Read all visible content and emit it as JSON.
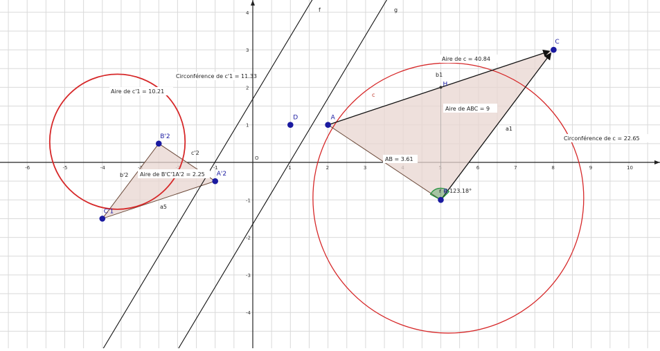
{
  "axes": {
    "x_ticks": [
      "-6",
      "-5",
      "-4",
      "-3",
      "-2",
      "-1",
      "1",
      "2",
      "3",
      "4",
      "5",
      "6",
      "7",
      "8",
      "9",
      "10"
    ],
    "y_ticks": [
      "4",
      "3",
      "2",
      "1",
      "-1",
      "-2",
      "-3",
      "-4"
    ],
    "origin": "O",
    "xrange": [
      -6.7,
      10.8
    ],
    "yrange": [
      -4.6,
      4.4
    ]
  },
  "points": {
    "A": {
      "label": "A",
      "x": 2,
      "y": 1
    },
    "B": {
      "label": "B",
      "x": 5,
      "y": -1
    },
    "C": {
      "label": "C",
      "x": 8,
      "y": 3
    },
    "D": {
      "label": "D",
      "x": 1,
      "y": 1
    },
    "B2": {
      "label": "B'2",
      "x": -2.5,
      "y": 0.5
    },
    "A2": {
      "label": "A'2",
      "x": -1,
      "y": -0.5
    },
    "C1": {
      "label": "C'1",
      "x": -4,
      "y": -1.5
    },
    "H": {
      "label": "H",
      "x": 5,
      "y": 2
    }
  },
  "lines": {
    "f": {
      "label": "f",
      "x1": -4,
      "y1": -5,
      "x2": 2.1,
      "y2": 5.2
    },
    "g": {
      "label": "g",
      "x1": -2,
      "y1": -5,
      "x2": 4.2,
      "y2": 5.4
    }
  },
  "segment_labels": {
    "c": "c",
    "b1": "b1",
    "a1": "a1",
    "c2": "c'2",
    "b2": "b'2",
    "a5": "a5",
    "angle": "r = 123.18°"
  },
  "texts": {
    "aire_c": "Aire de c = 40.84",
    "aire_abc": "Aire de  ABC = 9",
    "ab": "AB = 3.61",
    "circ_c": "Circonférence de c = 22.65",
    "circ_c1": "Circonférence de c'1 = 11.33",
    "aire_c1": "Aire de c'1 = 10.21",
    "aire_tri2": "Aire de  B'C'1A'2 = 2.25"
  },
  "colors": {
    "circle": "#d62728",
    "point": "#1a1aa0",
    "fill": "#e8d5d0",
    "angle": "#1f8f3a"
  }
}
